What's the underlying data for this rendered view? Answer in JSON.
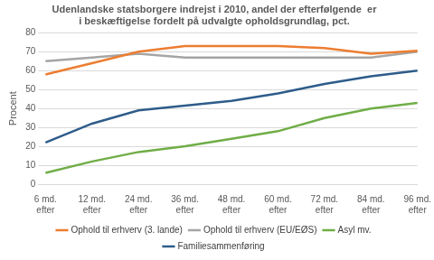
{
  "chart_data": {
    "type": "line",
    "title": [
      "Udenlandske statsborgere indrejst i 2010, andel der efterfølgende  er",
      "i beskæftigelse fordelt på udvalgte opholdsgrundlag, pct."
    ],
    "y_label": "Procent",
    "categories": [
      [
        "6 md.",
        "efter"
      ],
      [
        "12 md.",
        "efter"
      ],
      [
        "24 md.",
        "efter"
      ],
      [
        "36 md.",
        "efter"
      ],
      [
        "48 md.",
        "efter"
      ],
      [
        "60 md.",
        "efter"
      ],
      [
        "72 md.",
        "efter"
      ],
      [
        "84 md.",
        "efter"
      ],
      [
        "96 md.",
        "efter"
      ]
    ],
    "series": [
      {
        "name": "Ophold til erhverv (3. lande)",
        "color": "#ed7d31",
        "values": [
          58,
          64,
          70,
          73,
          73,
          73,
          72,
          69,
          70.5
        ]
      },
      {
        "name": "Ophold til erhverv (EU/EØS)",
        "color": "#a5a5a5",
        "values": [
          65,
          67,
          69,
          67,
          67,
          67,
          67,
          67,
          70
        ]
      },
      {
        "name": "Asyl mv.",
        "color": "#70ad47",
        "values": [
          6,
          12,
          17,
          20,
          24,
          28,
          35,
          40,
          43
        ]
      },
      {
        "name": "Familiesammenføring",
        "color": "#2e5c8a",
        "values": [
          22,
          32,
          39,
          41.5,
          44,
          48,
          53,
          57,
          60
        ]
      }
    ],
    "ylim": [
      0,
      80
    ],
    "yticks": [
      0,
      10,
      20,
      30,
      40,
      50,
      60,
      70,
      80
    ],
    "grid": true,
    "legend": "bottom"
  }
}
